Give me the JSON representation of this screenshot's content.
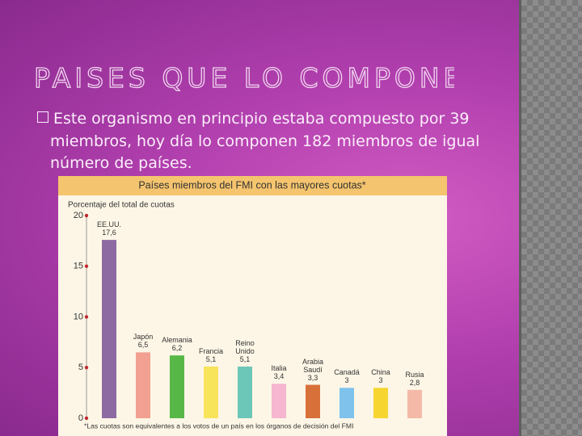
{
  "slide": {
    "title": "PAISES QUE LO COMPONEN",
    "bullet": "Este organismo en principio estaba compuesto por 39 miembros, hoy día lo componen 182 miembros de igual número de países."
  },
  "chart_data": {
    "type": "bar",
    "title": "Países miembros del FMI con las mayores cuotas*",
    "y_label": "Porcentaje del total de cuotas",
    "footnote": "*Las cuotas son equivalentes a los votos de un país en los órganos de decisión del FMI",
    "categories": [
      "EE.UU.",
      "Japón",
      "Alemania",
      "Francia",
      "Reino Unido",
      "Italia",
      "Arabia Saudí",
      "Canadá",
      "China",
      "Rusia"
    ],
    "values": [
      17.6,
      6.5,
      6.2,
      5.1,
      5.1,
      3.4,
      3.3,
      3,
      3,
      2.8
    ],
    "value_labels": [
      "17,6",
      "6,5",
      "6,2",
      "5,1",
      "5,1",
      "3,4",
      "3,3",
      "3",
      "3",
      "2,8"
    ],
    "colors": [
      "#8e6aa3",
      "#f2a091",
      "#58b847",
      "#f7e45a",
      "#6dc7b8",
      "#f6b6cf",
      "#d8703a",
      "#7fc3ec",
      "#f7d530",
      "#f5b9a7"
    ],
    "ylim": [
      0,
      20
    ],
    "yticks": [
      0,
      5,
      10,
      15,
      20
    ],
    "grid": false
  }
}
